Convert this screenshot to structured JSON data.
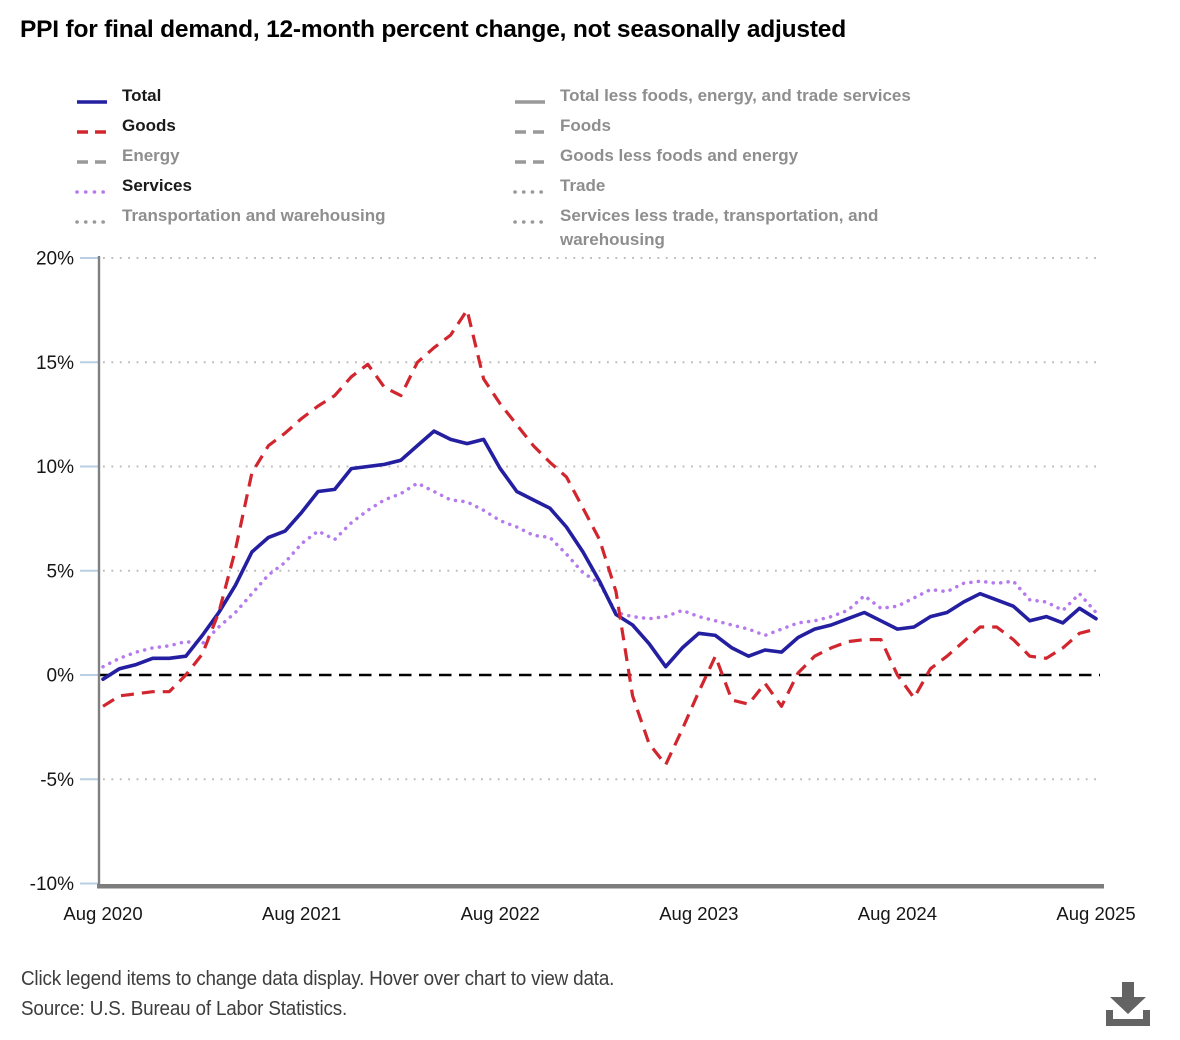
{
  "title": "PPI for final demand, 12-month percent change, not seasonally adjusted",
  "legend": {
    "columns": [
      {
        "items": [
          {
            "label": "Total",
            "color": "#241fa0",
            "line_style": "solid",
            "active": true
          },
          {
            "label": "Goods",
            "color": "#d2262f",
            "line_style": "dashed",
            "active": true
          },
          {
            "label": "Energy",
            "color": "#999999",
            "line_style": "dashed",
            "active": false
          },
          {
            "label": "Services",
            "color": "#b57bee",
            "line_style": "dotted",
            "active": true
          },
          {
            "label": "Transportation and warehousing",
            "color": "#999999",
            "line_style": "dotted",
            "active": false
          }
        ]
      },
      {
        "items": [
          {
            "label": "Total less foods, energy, and trade services",
            "color": "#999999",
            "line_style": "solid",
            "active": false
          },
          {
            "label": "Foods",
            "color": "#999999",
            "line_style": "dashed",
            "active": false
          },
          {
            "label": "Goods less foods and energy",
            "color": "#999999",
            "line_style": "dashed",
            "active": false
          },
          {
            "label": "Trade",
            "color": "#999999",
            "line_style": "dotted",
            "active": false
          },
          {
            "label": "Services less trade, transportation, and warehousing",
            "color": "#999999",
            "line_style": "dotted",
            "active": false
          }
        ]
      }
    ]
  },
  "chart_data": {
    "type": "line",
    "title": "PPI for final demand, 12-month percent change, not seasonally adjusted",
    "x_start": "Aug 2020",
    "x_interval": "monthly",
    "x_tick_labels": [
      "Aug 2020",
      "Aug 2021",
      "Aug 2022",
      "Aug 2023",
      "Aug 2024",
      "Aug 2025"
    ],
    "y_ticks": [
      {
        "value": 20,
        "label": "20%"
      },
      {
        "value": 15,
        "label": "15%"
      },
      {
        "value": 10,
        "label": "10%"
      },
      {
        "value": 5,
        "label": "5%"
      },
      {
        "value": 0,
        "label": "0%"
      },
      {
        "value": -5,
        "label": "-5%"
      },
      {
        "value": -10,
        "label": "-10%"
      }
    ],
    "ylim": [
      -10,
      20
    ],
    "grid": "dotted horizontal lines at labeled ticks, dashed black line at 0%",
    "legend_position": "top, two columns",
    "series": [
      {
        "name": "Total",
        "color": "#241fa0",
        "line_style": "solid",
        "values": [
          -0.2,
          0.3,
          0.5,
          0.8,
          0.8,
          0.9,
          1.9,
          3.0,
          4.3,
          5.9,
          6.6,
          6.9,
          7.8,
          8.8,
          8.9,
          9.9,
          10.0,
          10.1,
          10.3,
          11.0,
          11.7,
          11.3,
          11.1,
          11.3,
          9.9,
          8.8,
          8.4,
          8.0,
          7.1,
          5.9,
          4.5,
          2.9,
          2.4,
          1.5,
          0.4,
          1.3,
          2.0,
          1.9,
          1.3,
          0.9,
          1.2,
          1.1,
          1.8,
          2.2,
          2.4,
          2.7,
          3.0,
          2.6,
          2.2,
          2.3,
          2.8,
          3.0,
          3.5,
          3.9,
          3.6,
          3.3,
          2.6,
          2.8,
          2.5,
          3.2,
          2.7
        ]
      },
      {
        "name": "Goods",
        "color": "#d2262f",
        "line_style": "dashed",
        "values": [
          -1.5,
          -1.0,
          -0.9,
          -0.8,
          -0.8,
          0.0,
          1.0,
          3.0,
          6.0,
          9.7,
          11.0,
          11.6,
          12.3,
          12.9,
          13.4,
          14.3,
          14.9,
          13.8,
          13.4,
          15.0,
          15.7,
          16.3,
          17.5,
          14.2,
          13.0,
          12.0,
          11.0,
          10.2,
          9.5,
          8.0,
          6.5,
          4.0,
          -1.0,
          -3.3,
          -4.3,
          -2.6,
          -0.8,
          0.9,
          -1.2,
          -1.4,
          -0.4,
          -1.5,
          0.1,
          0.9,
          1.3,
          1.6,
          1.7,
          1.7,
          0.0,
          -1.1,
          0.3,
          0.9,
          1.6,
          2.3,
          2.3,
          1.7,
          0.9,
          0.8,
          1.3,
          2.0,
          2.2
        ]
      },
      {
        "name": "Services",
        "color": "#b57bee",
        "line_style": "dotted",
        "values": [
          0.4,
          0.8,
          1.1,
          1.3,
          1.4,
          1.6,
          1.5,
          2.3,
          3.0,
          3.9,
          4.8,
          5.4,
          6.3,
          6.9,
          6.5,
          7.3,
          7.9,
          8.4,
          8.7,
          9.2,
          8.8,
          8.4,
          8.3,
          7.9,
          7.4,
          7.1,
          6.7,
          6.6,
          5.8,
          4.9,
          4.4,
          3.0,
          2.8,
          2.7,
          2.8,
          3.1,
          2.8,
          2.6,
          2.4,
          2.2,
          1.9,
          2.2,
          2.5,
          2.6,
          2.8,
          3.1,
          3.8,
          3.2,
          3.3,
          3.7,
          4.1,
          4.0,
          4.4,
          4.5,
          4.4,
          4.5,
          3.6,
          3.5,
          3.1,
          3.9,
          3.0
        ]
      }
    ],
    "hidden_series_names": [
      "Energy",
      "Transportation and warehousing",
      "Total less foods, energy, and trade services",
      "Foods",
      "Goods less foods and energy",
      "Trade",
      "Services less trade, transportation, and warehousing"
    ]
  },
  "colors": {
    "total": "#241fa0",
    "goods": "#d2262f",
    "services": "#b57bee",
    "inactive_gray": "#999999",
    "gridline": "#bcbcbc",
    "axis": "#808080",
    "tick_mark": "#b9cfe3",
    "zero_line": "#000000",
    "footer_text": "#3d3d3d",
    "download_icon": "#636363"
  },
  "footer": {
    "line1": "Click legend items to change data display. Hover over chart to view data.",
    "line2": "Source: U.S. Bureau of Labor Statistics."
  },
  "download_label": "download-chart"
}
